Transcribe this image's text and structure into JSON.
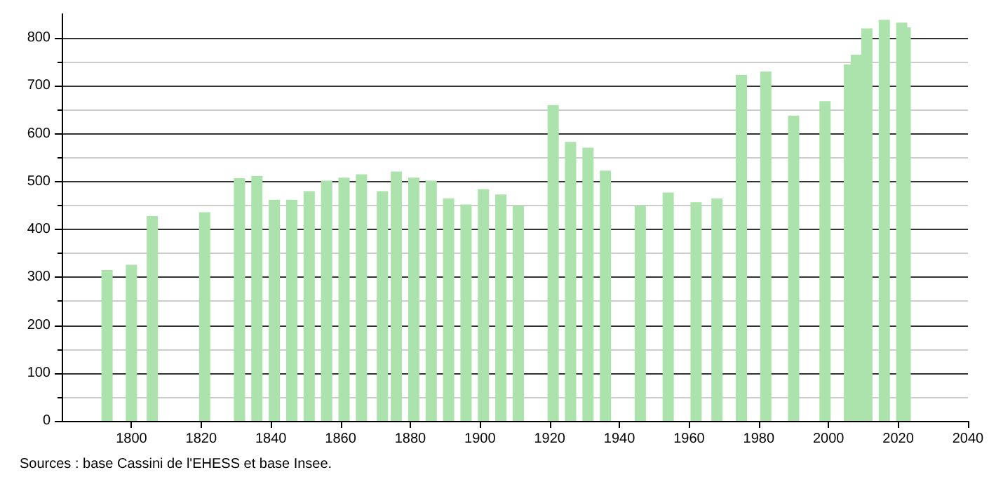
{
  "chart_data": {
    "type": "bar",
    "x": [
      1793,
      1800,
      1806,
      1821,
      1831,
      1836,
      1841,
      1846,
      1851,
      1856,
      1861,
      1866,
      1872,
      1876,
      1881,
      1886,
      1891,
      1896,
      1901,
      1906,
      1911,
      1921,
      1926,
      1931,
      1936,
      1946,
      1954,
      1962,
      1968,
      1975,
      1982,
      1990,
      1999,
      2006,
      2008,
      2011,
      2016,
      2021,
      2022
    ],
    "values": [
      315,
      326,
      428,
      436,
      507,
      512,
      462,
      462,
      480,
      502,
      508,
      515,
      480,
      521,
      508,
      502,
      465,
      452,
      484,
      473,
      450,
      660,
      583,
      571,
      523,
      450,
      477,
      457,
      465,
      723,
      730,
      638,
      668,
      745,
      765,
      820,
      838,
      832,
      822
    ],
    "color": "#ace3ac",
    "xlim": [
      1780,
      2040
    ],
    "xticks": [
      1800,
      1820,
      1840,
      1860,
      1880,
      1900,
      1920,
      1940,
      1960,
      1980,
      2000,
      2020,
      2040
    ],
    "ylim": [
      0,
      850
    ],
    "yticks": [
      0,
      100,
      200,
      300,
      400,
      500,
      600,
      700,
      800
    ],
    "grid": "y",
    "annotations": [
      "Sources : base Cassini de l'EHESS et base Insee."
    ]
  }
}
